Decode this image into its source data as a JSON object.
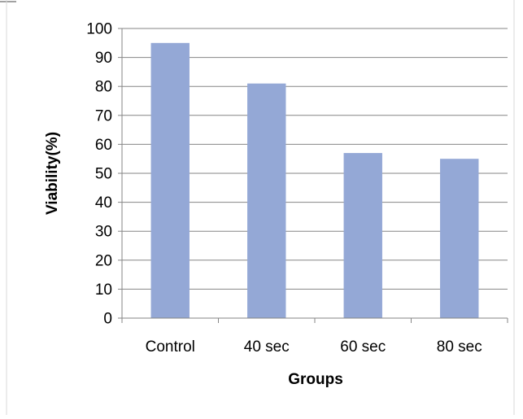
{
  "chart_data": {
    "type": "bar",
    "categories": [
      "Control",
      "40 sec",
      "60 sec",
      "80 sec"
    ],
    "values": [
      95,
      81,
      57,
      55
    ],
    "xlabel": "Groups",
    "ylabel": "Viability(%)",
    "ylim": [
      0,
      100
    ],
    "yticks": [
      0,
      10,
      20,
      30,
      40,
      50,
      60,
      70,
      80,
      90,
      100
    ],
    "grid": true,
    "legend": "none",
    "bar_color": "#94a8d6",
    "grid_color": "#868686",
    "axis_color": "#868686"
  }
}
